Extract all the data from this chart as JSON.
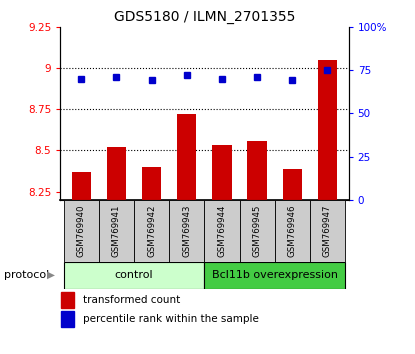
{
  "title": "GDS5180 / ILMN_2701355",
  "samples": [
    "GSM769940",
    "GSM769941",
    "GSM769942",
    "GSM769943",
    "GSM769944",
    "GSM769945",
    "GSM769946",
    "GSM769947"
  ],
  "bar_values": [
    8.37,
    8.52,
    8.4,
    8.72,
    8.53,
    8.56,
    8.39,
    9.05
  ],
  "dot_values": [
    70,
    71,
    69,
    72,
    70,
    71,
    69,
    75
  ],
  "ylim_left": [
    8.2,
    9.25
  ],
  "ylim_right": [
    0,
    100
  ],
  "yticks_left": [
    8.25,
    8.5,
    8.75,
    9.0,
    9.25
  ],
  "yticks_right": [
    0,
    25,
    50,
    75,
    100
  ],
  "ytick_labels_left": [
    "8.25",
    "8.5",
    "8.75",
    "9",
    "9.25"
  ],
  "ytick_labels_right": [
    "0",
    "25",
    "50",
    "75",
    "100%"
  ],
  "bar_color": "#cc0000",
  "dot_color": "#0000cc",
  "bar_bottom": 8.2,
  "control_label": "control",
  "overexpression_label": "Bcl11b overexpression",
  "protocol_label": "protocol",
  "legend_bar_label": "transformed count",
  "legend_dot_label": "percentile rank within the sample",
  "control_color": "#ccffcc",
  "overexpression_color": "#44cc44",
  "xlabel_bg": "#cccccc",
  "control_indices": [
    0,
    1,
    2,
    3
  ],
  "overexpression_indices": [
    4,
    5,
    6,
    7
  ],
  "dotted_lines": [
    8.5,
    8.75,
    9.0
  ]
}
